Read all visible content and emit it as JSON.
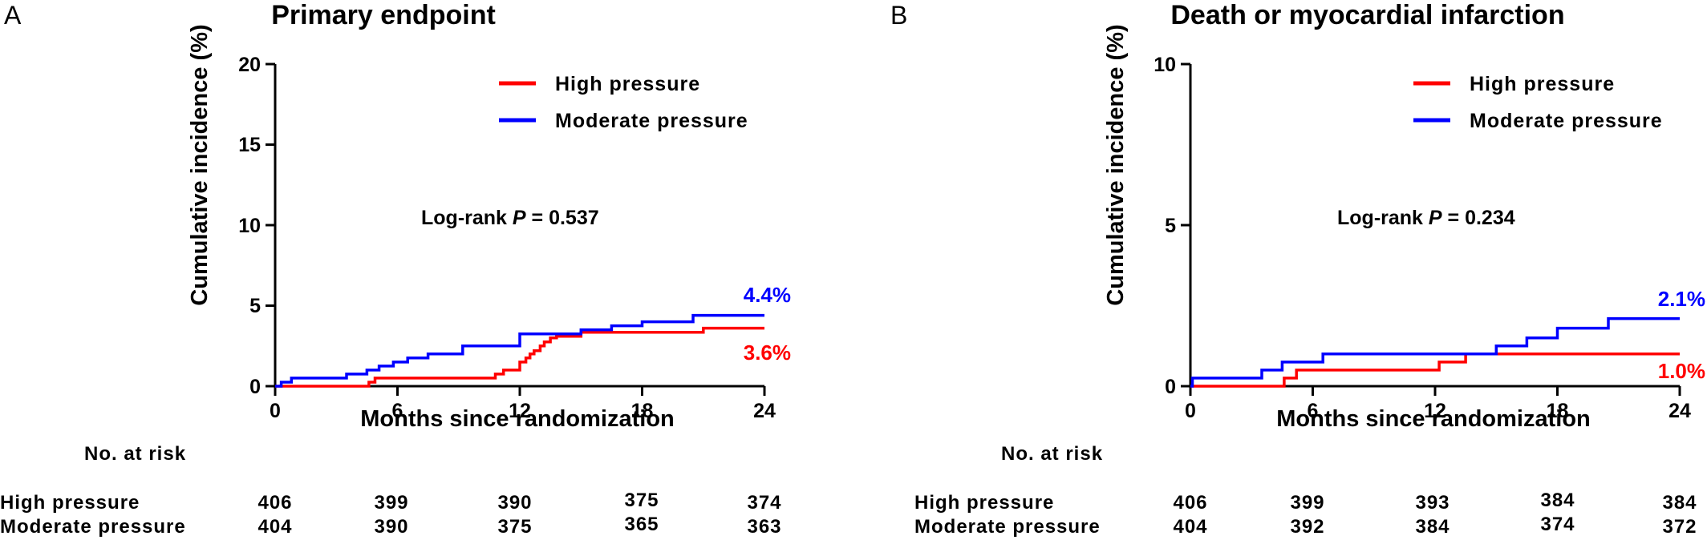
{
  "chart_data": [
    {
      "type": "line",
      "panel_letter": "A",
      "title": "Primary endpoint",
      "xlabel": "Months since randomization",
      "ylabel": "Cumulative incidence (%)",
      "xlim": [
        0,
        24
      ],
      "ylim": [
        0,
        20
      ],
      "x_ticks": [
        "0",
        "6",
        "12",
        "18",
        "24"
      ],
      "y_ticks": [
        "0",
        "5",
        "10",
        "15",
        "20"
      ],
      "grid": false,
      "legend_position": "top-right",
      "annotation": {
        "prefix": "Log-rank ",
        "p_symbol": "P",
        "value": " = 0.537"
      },
      "colors": {
        "High pressure": "#ff0000",
        "Moderate pressure": "#0000ff"
      },
      "series": [
        {
          "name": "High pressure",
          "end_label": "3.6%",
          "x": [
            0,
            4.6,
            4.9,
            5.4,
            10.8,
            11.2,
            12.0,
            12.3,
            12.5,
            12.7,
            13.0,
            13.2,
            13.5,
            13.8,
            15.0,
            21.0,
            24.0
          ],
          "y": [
            0,
            0.25,
            0.5,
            0.5,
            0.75,
            1.0,
            1.5,
            1.75,
            2.0,
            2.2,
            2.5,
            2.75,
            3.0,
            3.1,
            3.35,
            3.6,
            3.6
          ]
        },
        {
          "name": "Moderate pressure",
          "end_label": "4.4%",
          "x": [
            0,
            0.3,
            0.8,
            3.5,
            4.5,
            5.1,
            5.8,
            6.5,
            7.5,
            9.2,
            12.0,
            15.0,
            16.5,
            18.0,
            20.5,
            24.0
          ],
          "y": [
            0,
            0.25,
            0.5,
            0.75,
            1.0,
            1.25,
            1.5,
            1.75,
            2.0,
            2.5,
            3.25,
            3.5,
            3.75,
            4.0,
            4.4,
            4.4
          ]
        }
      ],
      "risk_table": {
        "header": "No. at risk",
        "rows": [
          {
            "label": "High pressure",
            "values": [
              "406",
              "399",
              "390",
              "375",
              "374"
            ]
          },
          {
            "label": "Moderate pressure",
            "values": [
              "404",
              "390",
              "375",
              "365",
              "363"
            ]
          }
        ]
      }
    },
    {
      "type": "line",
      "panel_letter": "B",
      "title": "Death or myocardial infarction",
      "xlabel": "Months since randomization",
      "ylabel": "Cumulative incidence (%)",
      "xlim": [
        0,
        24
      ],
      "ylim": [
        0,
        10
      ],
      "x_ticks": [
        "0",
        "6",
        "12",
        "18",
        "24"
      ],
      "y_ticks": [
        "0",
        "5",
        "10"
      ],
      "grid": false,
      "legend_position": "top-right",
      "annotation": {
        "prefix": "Log-rank ",
        "p_symbol": "P",
        "value": " = 0.234"
      },
      "colors": {
        "High pressure": "#ff0000",
        "Moderate pressure": "#0000ff"
      },
      "series": [
        {
          "name": "High pressure",
          "end_label": "1.0%",
          "x": [
            0,
            4.6,
            5.2,
            12.2,
            13.5,
            15.0,
            24.0
          ],
          "y": [
            0,
            0.25,
            0.5,
            0.75,
            1.0,
            1.0,
            1.0
          ]
        },
        {
          "name": "Moderate pressure",
          "end_label": "2.1%",
          "x": [
            0,
            0.1,
            3.5,
            4.5,
            6.5,
            15.0,
            16.5,
            18.0,
            20.5,
            24.0
          ],
          "y": [
            0,
            0.25,
            0.5,
            0.75,
            1.0,
            1.25,
            1.5,
            1.8,
            2.1,
            2.1
          ]
        }
      ],
      "risk_table": {
        "header": "No. at risk",
        "rows": [
          {
            "label": "High pressure",
            "values": [
              "406",
              "399",
              "393",
              "384",
              "384"
            ]
          },
          {
            "label": "Moderate pressure",
            "values": [
              "404",
              "392",
              "384",
              "374",
              "372"
            ]
          }
        ]
      }
    }
  ]
}
